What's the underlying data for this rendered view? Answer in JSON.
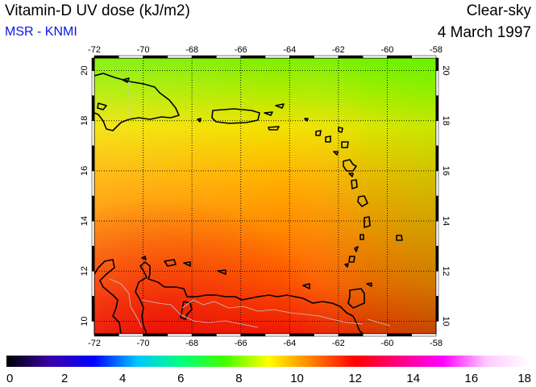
{
  "header": {
    "title": "Vitamin-D UV dose (kJ/m2)",
    "source": "MSR - KNMI",
    "sky_condition": "Clear-sky",
    "date": "4 March 1997"
  },
  "map": {
    "lon_range": [
      -72,
      -58
    ],
    "lat_range": [
      9.5,
      20.5
    ],
    "lon_ticks": [
      "-72",
      "-70",
      "-68",
      "-66",
      "-64",
      "-62",
      "-60",
      "-58"
    ],
    "lat_ticks": [
      "10",
      "12",
      "14",
      "16",
      "18",
      "20"
    ],
    "gridlines": "dotted",
    "field": "Vitamin-D UV dose",
    "dose_range_kJm2": [
      8.5,
      14
    ]
  },
  "colorbar": {
    "ticks": [
      "0",
      "2",
      "4",
      "6",
      "8",
      "10",
      "12",
      "14",
      "16",
      "18"
    ],
    "colors": [
      "#000000",
      "#3b00a8",
      "#0000ff",
      "#00c8ff",
      "#00ff80",
      "#40ff00",
      "#ffff00",
      "#ff8000",
      "#ff0000",
      "#ff0080",
      "#ff00ff",
      "#ffc8ff",
      "#ffffff"
    ]
  }
}
